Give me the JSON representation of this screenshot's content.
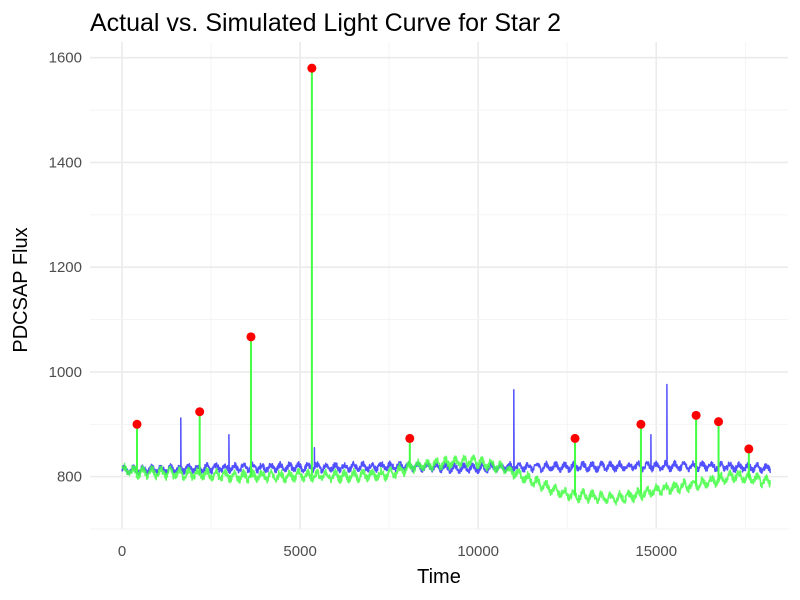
{
  "chart_data": {
    "type": "line",
    "title": "Actual vs. Simulated Light Curve for Star 2",
    "xlabel": "Time",
    "ylabel": "PDCSAP Flux",
    "xlim": [
      -900,
      18700
    ],
    "ylim": [
      700,
      1630
    ],
    "xticks": [
      0,
      5000,
      10000,
      15000
    ],
    "yticks": [
      800,
      1000,
      1200,
      1400,
      1600
    ],
    "x_tick_labels": [
      "0",
      "5000",
      "10000",
      "15000"
    ],
    "y_tick_labels": [
      "800",
      "1000",
      "1200",
      "1400",
      "1600"
    ],
    "grid": true,
    "legend": "none",
    "x_range": [
      0,
      18200
    ],
    "series": [
      {
        "role": "actual",
        "color": "#3333ff",
        "baseline": [
          [
            0,
            812
          ],
          [
            3000,
            817
          ],
          [
            6000,
            818
          ],
          [
            8000,
            820
          ],
          [
            9500,
            816
          ],
          [
            11000,
            818
          ],
          [
            13000,
            819
          ],
          [
            15000,
            820
          ],
          [
            16500,
            820
          ],
          [
            18200,
            816
          ]
        ],
        "noise_amplitude": 11,
        "spikes": [
          [
            1650,
            912
          ],
          [
            3000,
            880
          ],
          [
            5400,
            855
          ],
          [
            11000,
            966
          ],
          [
            14850,
            880
          ],
          [
            15300,
            976
          ]
        ]
      },
      {
        "role": "simulated",
        "color": "#44ff44",
        "baseline": [
          [
            0,
            812
          ],
          [
            500,
            808
          ],
          [
            2000,
            805
          ],
          [
            3500,
            800
          ],
          [
            5000,
            802
          ],
          [
            6500,
            801
          ],
          [
            7500,
            805
          ],
          [
            8200,
            820
          ],
          [
            9000,
            825
          ],
          [
            9800,
            830
          ],
          [
            10500,
            820
          ],
          [
            11000,
            808
          ],
          [
            11600,
            790
          ],
          [
            12000,
            778
          ],
          [
            12600,
            765
          ],
          [
            13200,
            762
          ],
          [
            13800,
            758
          ],
          [
            14300,
            763
          ],
          [
            15000,
            774
          ],
          [
            15600,
            780
          ],
          [
            16500,
            790
          ],
          [
            17200,
            802
          ],
          [
            18200,
            790
          ]
        ],
        "noise_amplitude": 14,
        "flares": [
          [
            420,
            900
          ],
          [
            2180,
            924
          ],
          [
            3620,
            1067
          ],
          [
            5330,
            1580
          ],
          [
            8080,
            873
          ],
          [
            12720,
            873
          ],
          [
            14570,
            900
          ],
          [
            16120,
            917
          ],
          [
            16750,
            905
          ],
          [
            17600,
            853
          ]
        ]
      }
    ],
    "flare_markers": {
      "color": "#ff0000",
      "points": [
        [
          420,
          900
        ],
        [
          2180,
          924
        ],
        [
          3620,
          1067
        ],
        [
          5330,
          1580
        ],
        [
          8080,
          873
        ],
        [
          12720,
          873
        ],
        [
          14570,
          900
        ],
        [
          16120,
          917
        ],
        [
          16750,
          905
        ],
        [
          17600,
          853
        ]
      ]
    }
  }
}
